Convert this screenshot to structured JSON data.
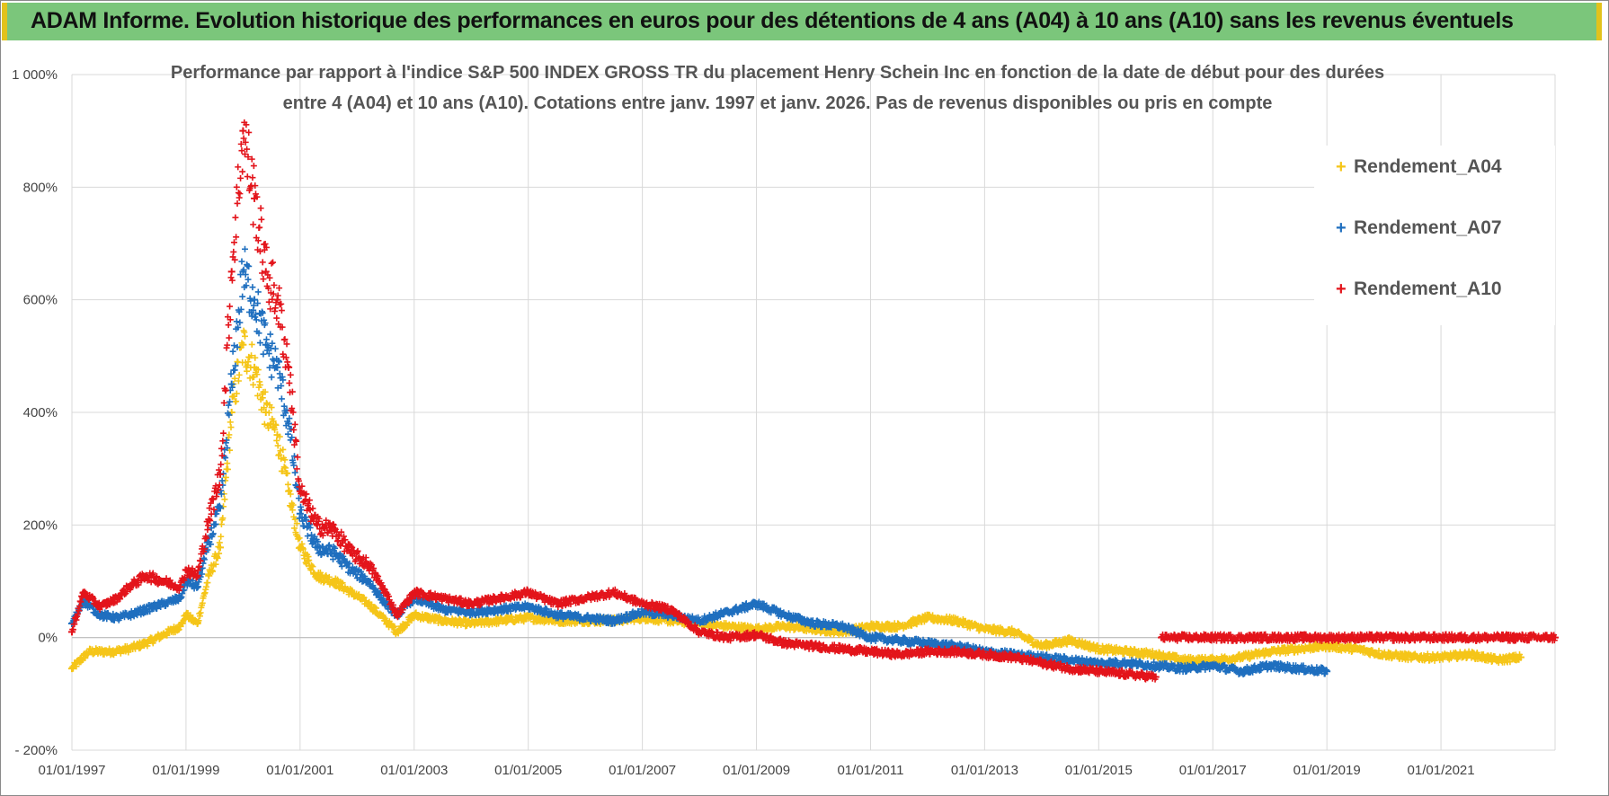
{
  "header": {
    "title": "ADAM Informe. Evolution historique des performances en euros pour des détentions de 4 ans (A04) à 10 ans (A10) sans les revenus éventuels"
  },
  "chart_data": {
    "type": "scatter",
    "title_line1": "Performance par rapport à l'indice S&P 500 INDEX GROSS TR  du placement Henry Schein Inc en fonction de la date de début pour des durées",
    "title_line2": "entre 4 (A04) et 10 ans (A10).  Cotations entre janv. 1997 et janv. 2026. Pas de revenus disponibles ou pris en compte",
    "xlabel": "",
    "ylabel": "",
    "ylim": [
      -200,
      1000
    ],
    "xlim": [
      1997.0,
      2023.0
    ],
    "y_ticks": [
      {
        "value": 1000,
        "label": "1 000%"
      },
      {
        "value": 800,
        "label": "800%"
      },
      {
        "value": 600,
        "label": "600%"
      },
      {
        "value": 400,
        "label": "400%"
      },
      {
        "value": 200,
        "label": "200%"
      },
      {
        "value": 0,
        "label": "0%"
      },
      {
        "value": -200,
        "label": "- 200%"
      }
    ],
    "x_ticks": [
      {
        "value": 1997,
        "label": "01/01/1997"
      },
      {
        "value": 1999,
        "label": "01/01/1999"
      },
      {
        "value": 2001,
        "label": "01/01/2001"
      },
      {
        "value": 2003,
        "label": "01/01/2003"
      },
      {
        "value": 2005,
        "label": "01/01/2005"
      },
      {
        "value": 2007,
        "label": "01/01/2007"
      },
      {
        "value": 2009,
        "label": "01/01/2009"
      },
      {
        "value": 2011,
        "label": "01/01/2011"
      },
      {
        "value": 2013,
        "label": "01/01/2013"
      },
      {
        "value": 2015,
        "label": "01/01/2015"
      },
      {
        "value": 2017,
        "label": "01/01/2017"
      },
      {
        "value": 2019,
        "label": "01/01/2019"
      },
      {
        "value": 2021,
        "label": "01/01/2021"
      }
    ],
    "grid": true,
    "legend_position": "right",
    "series": [
      {
        "name": "Rendement_A04",
        "color": "#f5c518",
        "marker": "+",
        "points": [
          [
            1997.0,
            -55
          ],
          [
            1997.3,
            -25
          ],
          [
            1997.7,
            -25
          ],
          [
            1998.0,
            -20
          ],
          [
            1998.3,
            -10
          ],
          [
            1998.6,
            5
          ],
          [
            1998.9,
            20
          ],
          [
            1999.0,
            40
          ],
          [
            1999.2,
            25
          ],
          [
            1999.4,
            110
          ],
          [
            1999.6,
            160
          ],
          [
            1999.8,
            400
          ],
          [
            2000.0,
            520
          ],
          [
            2000.2,
            480
          ],
          [
            2000.4,
            400
          ],
          [
            2000.6,
            360
          ],
          [
            2000.8,
            260
          ],
          [
            2001.0,
            160
          ],
          [
            2001.3,
            110
          ],
          [
            2001.6,
            100
          ],
          [
            2001.9,
            80
          ],
          [
            2002.2,
            60
          ],
          [
            2002.5,
            30
          ],
          [
            2002.7,
            10
          ],
          [
            2003.0,
            40
          ],
          [
            2003.5,
            30
          ],
          [
            2004.0,
            25
          ],
          [
            2004.5,
            30
          ],
          [
            2005.0,
            35
          ],
          [
            2005.5,
            30
          ],
          [
            2006.0,
            30
          ],
          [
            2006.5,
            30
          ],
          [
            2007.0,
            35
          ],
          [
            2007.5,
            30
          ],
          [
            2008.0,
            25
          ],
          [
            2008.5,
            20
          ],
          [
            2009.0,
            15
          ],
          [
            2009.5,
            20
          ],
          [
            2010.0,
            15
          ],
          [
            2010.5,
            10
          ],
          [
            2011.0,
            20
          ],
          [
            2011.5,
            20
          ],
          [
            2012.0,
            35
          ],
          [
            2012.5,
            30
          ],
          [
            2013.0,
            15
          ],
          [
            2013.5,
            10
          ],
          [
            2014.0,
            -15
          ],
          [
            2014.5,
            -5
          ],
          [
            2015.0,
            -20
          ],
          [
            2015.5,
            -25
          ],
          [
            2016.0,
            -30
          ],
          [
            2016.5,
            -40
          ],
          [
            2017.0,
            -40
          ],
          [
            2017.5,
            -35
          ],
          [
            2018.0,
            -25
          ],
          [
            2018.5,
            -20
          ],
          [
            2019.0,
            -15
          ],
          [
            2019.5,
            -20
          ],
          [
            2020.0,
            -30
          ],
          [
            2020.5,
            -35
          ],
          [
            2021.0,
            -35
          ],
          [
            2021.5,
            -30
          ],
          [
            2022.0,
            -40
          ],
          [
            2022.4,
            -35
          ]
        ]
      },
      {
        "name": "Rendement_A07",
        "color": "#1f6fbf",
        "marker": "+",
        "points": [
          [
            1997.0,
            25
          ],
          [
            1997.2,
            65
          ],
          [
            1997.5,
            40
          ],
          [
            1997.8,
            35
          ],
          [
            1998.0,
            40
          ],
          [
            1998.3,
            50
          ],
          [
            1998.6,
            60
          ],
          [
            1998.9,
            70
          ],
          [
            1999.0,
            100
          ],
          [
            1999.2,
            90
          ],
          [
            1999.4,
            170
          ],
          [
            1999.6,
            230
          ],
          [
            1999.8,
            450
          ],
          [
            2000.0,
            650
          ],
          [
            2000.2,
            600
          ],
          [
            2000.4,
            520
          ],
          [
            2000.6,
            480
          ],
          [
            2000.8,
            380
          ],
          [
            2001.0,
            220
          ],
          [
            2001.3,
            160
          ],
          [
            2001.6,
            150
          ],
          [
            2001.9,
            120
          ],
          [
            2002.2,
            100
          ],
          [
            2002.5,
            60
          ],
          [
            2002.7,
            40
          ],
          [
            2003.0,
            70
          ],
          [
            2003.5,
            50
          ],
          [
            2004.0,
            45
          ],
          [
            2004.5,
            50
          ],
          [
            2005.0,
            55
          ],
          [
            2005.5,
            40
          ],
          [
            2006.0,
            35
          ],
          [
            2006.5,
            30
          ],
          [
            2007.0,
            45
          ],
          [
            2007.5,
            40
          ],
          [
            2008.0,
            30
          ],
          [
            2008.5,
            45
          ],
          [
            2009.0,
            60
          ],
          [
            2009.5,
            40
          ],
          [
            2010.0,
            25
          ],
          [
            2010.5,
            20
          ],
          [
            2011.0,
            0
          ],
          [
            2011.5,
            -5
          ],
          [
            2012.0,
            -10
          ],
          [
            2012.5,
            -15
          ],
          [
            2013.0,
            -25
          ],
          [
            2013.5,
            -30
          ],
          [
            2014.0,
            -35
          ],
          [
            2014.5,
            -40
          ],
          [
            2015.0,
            -45
          ],
          [
            2015.5,
            -45
          ],
          [
            2016.0,
            -50
          ],
          [
            2016.5,
            -55
          ],
          [
            2017.0,
            -50
          ],
          [
            2017.5,
            -60
          ],
          [
            2018.0,
            -50
          ],
          [
            2018.5,
            -55
          ],
          [
            2019.0,
            -60
          ]
        ]
      },
      {
        "name": "Rendement_A10",
        "color": "#e3141b",
        "marker": "+",
        "points": [
          [
            1997.0,
            10
          ],
          [
            1997.2,
            80
          ],
          [
            1997.5,
            55
          ],
          [
            1997.8,
            70
          ],
          [
            1998.0,
            90
          ],
          [
            1998.3,
            110
          ],
          [
            1998.6,
            100
          ],
          [
            1998.9,
            90
          ],
          [
            1999.0,
            120
          ],
          [
            1999.2,
            110
          ],
          [
            1999.4,
            210
          ],
          [
            1999.6,
            290
          ],
          [
            1999.8,
            650
          ],
          [
            2000.0,
            900
          ],
          [
            2000.2,
            780
          ],
          [
            2000.4,
            650
          ],
          [
            2000.6,
            600
          ],
          [
            2000.8,
            480
          ],
          [
            2001.0,
            260
          ],
          [
            2001.3,
            200
          ],
          [
            2001.6,
            190
          ],
          [
            2001.9,
            150
          ],
          [
            2002.2,
            130
          ],
          [
            2002.5,
            80
          ],
          [
            2002.7,
            40
          ],
          [
            2003.0,
            80
          ],
          [
            2003.5,
            70
          ],
          [
            2004.0,
            60
          ],
          [
            2004.5,
            70
          ],
          [
            2005.0,
            80
          ],
          [
            2005.5,
            60
          ],
          [
            2006.0,
            70
          ],
          [
            2006.5,
            80
          ],
          [
            2007.0,
            60
          ],
          [
            2007.5,
            50
          ],
          [
            2008.0,
            10
          ],
          [
            2008.5,
            0
          ],
          [
            2009.0,
            5
          ],
          [
            2009.5,
            -10
          ],
          [
            2010.0,
            -15
          ],
          [
            2010.5,
            -20
          ],
          [
            2011.0,
            -25
          ],
          [
            2011.5,
            -30
          ],
          [
            2012.0,
            -25
          ],
          [
            2012.5,
            -25
          ],
          [
            2013.0,
            -30
          ],
          [
            2013.5,
            -35
          ],
          [
            2014.0,
            -45
          ],
          [
            2014.5,
            -55
          ],
          [
            2015.0,
            -60
          ],
          [
            2015.5,
            -65
          ],
          [
            2016.0,
            -70
          ],
          [
            2016.1,
            0
          ],
          [
            2017.0,
            0
          ],
          [
            2018.0,
            0
          ],
          [
            2019.0,
            0
          ],
          [
            2020.0,
            0
          ],
          [
            2021.0,
            0
          ],
          [
            2022.0,
            0
          ],
          [
            2023.0,
            0
          ]
        ]
      }
    ]
  }
}
